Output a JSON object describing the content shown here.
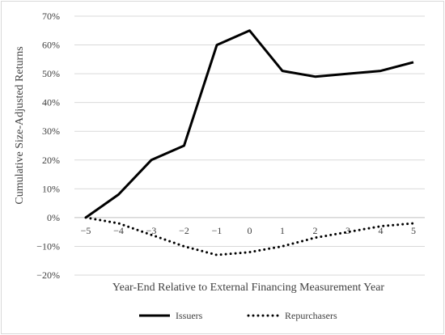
{
  "chart_data": {
    "type": "line",
    "title": "",
    "xlabel": "Year-End Relative to External Financing Measurement Year",
    "ylabel": "Cumulative Size-Adjusted Returns",
    "x": [
      -5,
      -4,
      -3,
      -2,
      -1,
      0,
      1,
      2,
      3,
      4,
      5
    ],
    "x_tick_labels": [
      "−5",
      "−4",
      "−3",
      "−2",
      "−1",
      "0",
      "1",
      "2",
      "3",
      "4",
      "5"
    ],
    "y_ticks": [
      -20,
      -10,
      0,
      10,
      20,
      30,
      40,
      50,
      60,
      70
    ],
    "y_tick_labels": [
      "−20%",
      "−10%",
      "0%",
      "10%",
      "20%",
      "30%",
      "40%",
      "50%",
      "60%",
      "70%"
    ],
    "ylim": [
      -20,
      70
    ],
    "grid": "horizontal",
    "legend_position": "bottom",
    "series": [
      {
        "name": "Issuers",
        "style": "solid",
        "color": "#000000",
        "values": [
          0,
          8,
          20,
          25,
          60,
          65,
          51,
          49,
          50,
          51,
          54
        ]
      },
      {
        "name": "Repurchasers",
        "style": "dotted",
        "color": "#000000",
        "values": [
          0,
          -2,
          -6,
          -10,
          -13,
          -12,
          -10,
          -7,
          -5,
          -3,
          -2
        ]
      }
    ]
  }
}
